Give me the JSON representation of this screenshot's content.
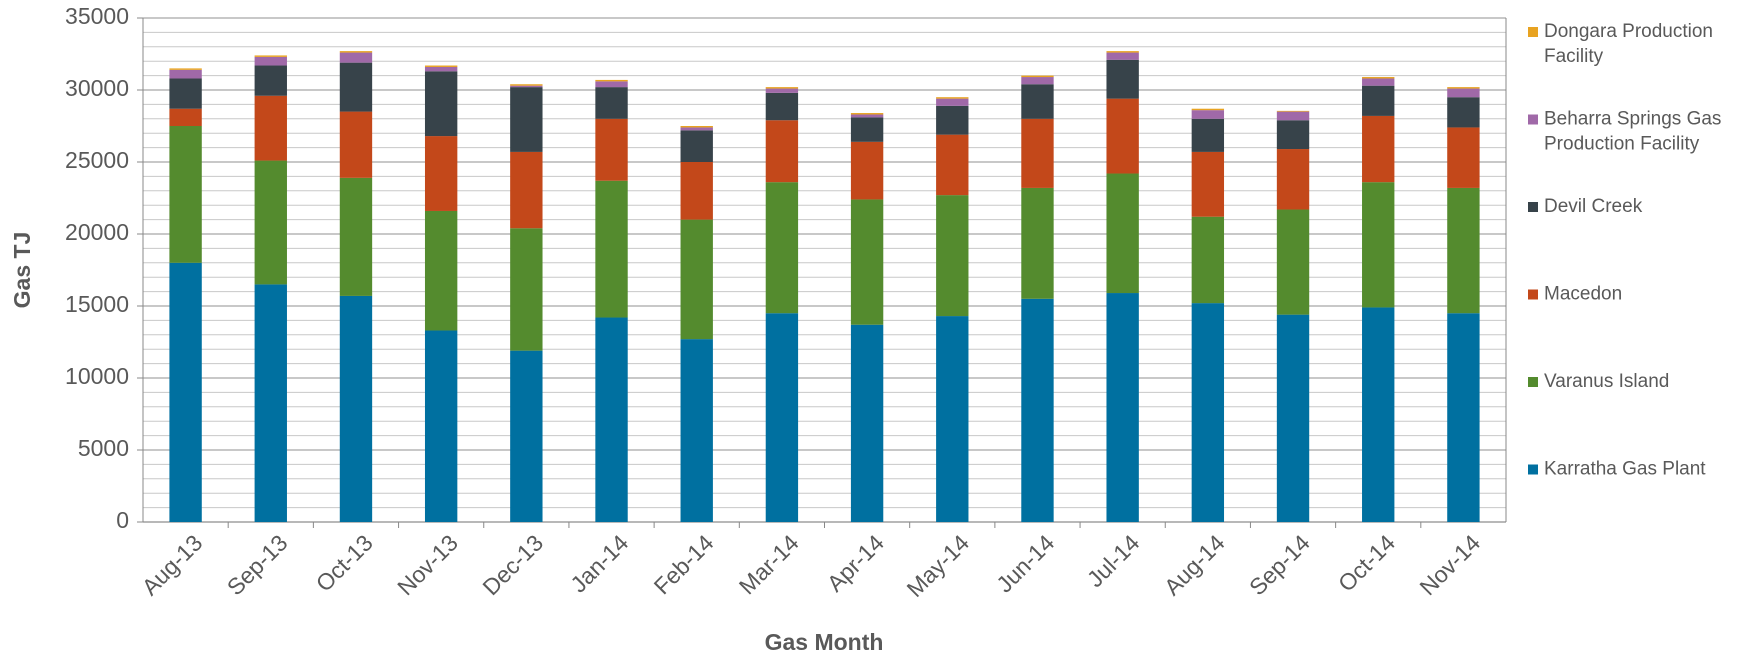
{
  "chart_data": {
    "type": "stacked_bar",
    "x_label": "Gas Month",
    "y_label": "Gas TJ",
    "categories": [
      "Aug-13",
      "Sep-13",
      "Oct-13",
      "Nov-13",
      "Dec-13",
      "Jan-14",
      "Feb-14",
      "Mar-14",
      "Apr-14",
      "May-14",
      "Jun-14",
      "Jul-14",
      "Aug-14",
      "Sep-14",
      "Oct-14",
      "Nov-14"
    ],
    "series": [
      {
        "name": "Karratha Gas Plant",
        "color": "#0070a0",
        "values": [
          18000,
          16500,
          15700,
          13300,
          11900,
          14200,
          12700,
          14500,
          13700,
          14300,
          15500,
          15900,
          15200,
          14400,
          14900,
          14500
        ]
      },
      {
        "name": "Varanus Island",
        "color": "#548b2e",
        "values": [
          9500,
          8600,
          8200,
          8300,
          8500,
          9500,
          8300,
          9100,
          8700,
          8400,
          7700,
          8300,
          6000,
          7300,
          8700,
          8700
        ]
      },
      {
        "name": "Macedon",
        "color": "#c3481a",
        "values": [
          1200,
          4500,
          4600,
          5200,
          5300,
          4300,
          4000,
          4300,
          4000,
          4200,
          4800,
          5200,
          4500,
          4200,
          4600,
          4200
        ]
      },
      {
        "name": "Devil Creek",
        "color": "#37434a",
        "values": [
          2100,
          2100,
          3400,
          4500,
          4500,
          2200,
          2200,
          1900,
          1700,
          2000,
          2400,
          2700,
          2300,
          2000,
          2100,
          2100
        ]
      },
      {
        "name": "Beharra Springs Gas Production Facility",
        "color": "#a069a8",
        "values": [
          600,
          600,
          700,
          300,
          100,
          400,
          200,
          300,
          200,
          500,
          500,
          500,
          600,
          600,
          500,
          600
        ]
      },
      {
        "name": "Dongara Production Facility",
        "color": "#e8a321",
        "values": [
          100,
          100,
          100,
          100,
          100,
          100,
          100,
          100,
          100,
          100,
          100,
          100,
          100,
          50,
          100,
          100
        ]
      }
    ],
    "ylim": [
      0,
      35000
    ],
    "yticks": [
      0,
      5000,
      10000,
      15000,
      20000,
      25000,
      30000,
      35000
    ],
    "minor_yticks": [
      1000,
      2000,
      3000,
      4000,
      6000,
      7000,
      8000,
      9000,
      11000,
      12000,
      13000,
      14000,
      16000,
      17000,
      18000,
      19000,
      21000,
      22000,
      23000,
      24000,
      26000,
      27000,
      28000,
      29000,
      31000,
      32000,
      33000,
      34000
    ],
    "grid": true,
    "legend": "right"
  }
}
